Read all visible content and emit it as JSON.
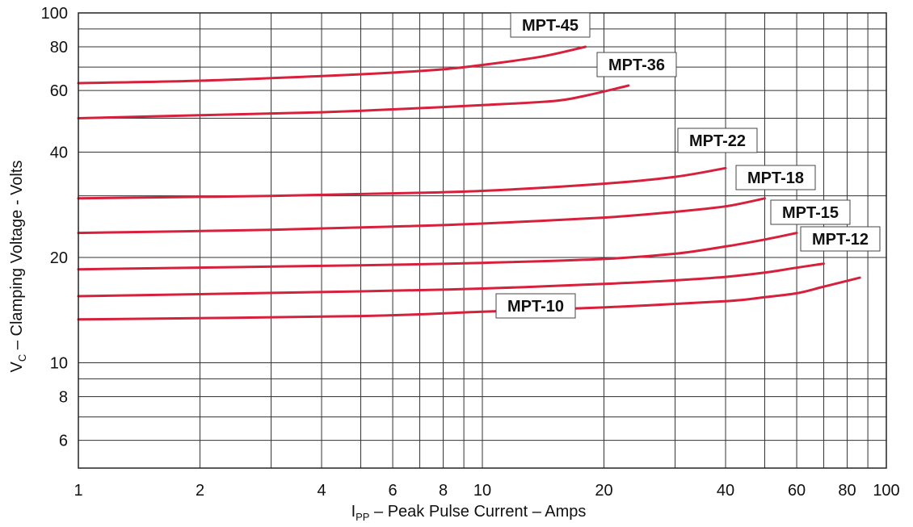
{
  "chart_data": {
    "type": "line",
    "x_scale": "log",
    "y_scale": "log",
    "xlim": [
      1,
      100
    ],
    "ylim": [
      5,
      100
    ],
    "grid": true,
    "xlabel": {
      "main": "I",
      "sub": "PP",
      "rest": " – Peak Pulse Current – Amps"
    },
    "ylabel": {
      "main": "V",
      "sub": "C",
      "rest": " – Clamping Voltage - Volts"
    },
    "x_ticks": [
      {
        "value": 1,
        "label": "1"
      },
      {
        "value": 2,
        "label": "2"
      },
      {
        "value": 4,
        "label": "4"
      },
      {
        "value": 6,
        "label": "6"
      },
      {
        "value": 8,
        "label": "8"
      },
      {
        "value": 10,
        "label": "10"
      },
      {
        "value": 20,
        "label": "20"
      },
      {
        "value": 40,
        "label": "40"
      },
      {
        "value": 60,
        "label": "60"
      },
      {
        "value": 80,
        "label": "80"
      },
      {
        "value": 100,
        "label": "100"
      }
    ],
    "y_ticks": [
      {
        "value": 6,
        "label": "6"
      },
      {
        "value": 8,
        "label": "8"
      },
      {
        "value": 10,
        "label": "10"
      },
      {
        "value": 20,
        "label": "20"
      },
      {
        "value": 40,
        "label": "40"
      },
      {
        "value": 60,
        "label": "60"
      },
      {
        "value": 80,
        "label": "80"
      },
      {
        "value": 100,
        "label": "100"
      }
    ],
    "x_grid": [
      1,
      2,
      3,
      4,
      5,
      6,
      7,
      8,
      9,
      10,
      20,
      30,
      40,
      50,
      60,
      70,
      80,
      90,
      100
    ],
    "y_grid": [
      5,
      6,
      7,
      8,
      9,
      10,
      20,
      30,
      40,
      50,
      60,
      70,
      80,
      90,
      100
    ],
    "line_color": "#d6203c",
    "series": [
      {
        "name": "MPT-45",
        "points": [
          [
            1,
            63
          ],
          [
            2,
            64
          ],
          [
            4,
            66
          ],
          [
            6,
            67.5
          ],
          [
            8,
            69
          ],
          [
            10,
            71
          ],
          [
            14,
            75
          ],
          [
            18,
            80
          ]
        ]
      },
      {
        "name": "MPT-36",
        "points": [
          [
            1,
            50
          ],
          [
            2,
            51
          ],
          [
            4,
            52
          ],
          [
            6,
            53
          ],
          [
            10,
            54.5
          ],
          [
            15,
            56
          ],
          [
            18,
            58
          ],
          [
            23,
            62
          ]
        ]
      },
      {
        "name": "MPT-22",
        "points": [
          [
            1,
            29.5
          ],
          [
            3,
            30
          ],
          [
            6,
            30.5
          ],
          [
            10,
            31
          ],
          [
            20,
            32.5
          ],
          [
            30,
            34
          ],
          [
            40,
            36
          ]
        ]
      },
      {
        "name": "MPT-18",
        "points": [
          [
            1,
            23.5
          ],
          [
            3,
            24
          ],
          [
            6,
            24.5
          ],
          [
            10,
            25
          ],
          [
            20,
            26
          ],
          [
            30,
            27
          ],
          [
            40,
            28
          ],
          [
            50,
            29.5
          ]
        ]
      },
      {
        "name": "MPT-15",
        "points": [
          [
            1,
            18.5
          ],
          [
            5,
            19
          ],
          [
            10,
            19.3
          ],
          [
            20,
            19.8
          ],
          [
            30,
            20.5
          ],
          [
            40,
            21.5
          ],
          [
            50,
            22.5
          ],
          [
            60,
            23.5
          ]
        ]
      },
      {
        "name": "MPT-12",
        "points": [
          [
            1,
            15.5
          ],
          [
            5,
            16
          ],
          [
            10,
            16.3
          ],
          [
            20,
            16.8
          ],
          [
            30,
            17.2
          ],
          [
            40,
            17.6
          ],
          [
            50,
            18.1
          ],
          [
            60,
            18.7
          ],
          [
            70,
            19.2
          ]
        ]
      },
      {
        "name": "MPT-10",
        "points": [
          [
            1,
            13.3
          ],
          [
            5,
            13.6
          ],
          [
            10,
            14
          ],
          [
            20,
            14.4
          ],
          [
            40,
            15
          ],
          [
            50,
            15.4
          ],
          [
            60,
            15.8
          ],
          [
            70,
            16.5
          ],
          [
            86,
            17.5
          ]
        ]
      }
    ]
  }
}
